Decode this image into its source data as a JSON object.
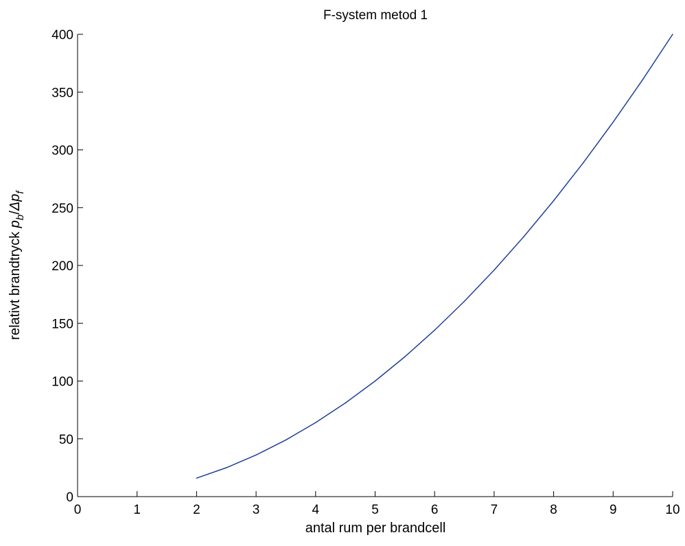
{
  "chart_data": {
    "type": "line",
    "title": "F-system  metod 1",
    "xlabel": "antal rum per brandcell",
    "ylabel": {
      "prefix": "relativt brandtryck  ",
      "p1": "p",
      "sub1": "b",
      "slash": "/",
      "delta": "Δ",
      "p2": "p",
      "sub2": "f"
    },
    "xlim": [
      0,
      10
    ],
    "ylim": [
      0,
      400
    ],
    "xticks": [
      "0",
      "1",
      "2",
      "3",
      "4",
      "5",
      "6",
      "7",
      "8",
      "9",
      "10"
    ],
    "yticks": [
      "0",
      "50",
      "100",
      "150",
      "200",
      "250",
      "300",
      "350",
      "400"
    ],
    "grid": false,
    "series": [
      {
        "color": "#1f3f99",
        "x": [
          2,
          2.5,
          3,
          3.5,
          4,
          4.5,
          5,
          5.5,
          6,
          6.5,
          7,
          7.5,
          8,
          8.5,
          9,
          9.5,
          10
        ],
        "y": [
          16,
          25,
          36,
          49,
          64,
          81,
          100,
          121,
          144,
          169,
          196,
          225,
          256,
          289,
          324,
          361,
          400
        ]
      }
    ]
  }
}
